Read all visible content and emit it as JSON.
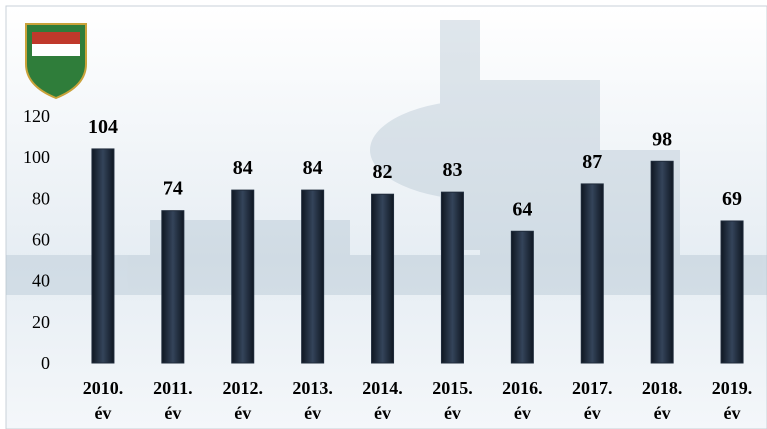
{
  "chart_data": {
    "type": "bar",
    "categories": [
      "2010. év",
      "2011. év",
      "2012. év",
      "2013. év",
      "2014. év",
      "2015. év",
      "2016. év",
      "2017. év",
      "2018. év",
      "2019. év"
    ],
    "values": [
      104,
      74,
      84,
      84,
      82,
      83,
      64,
      87,
      98,
      69
    ],
    "color": "#1f2b3b",
    "ylim": [
      0,
      120
    ],
    "yticks": [
      0,
      20,
      40,
      60,
      80,
      100,
      120
    ],
    "grid": false
  }
}
